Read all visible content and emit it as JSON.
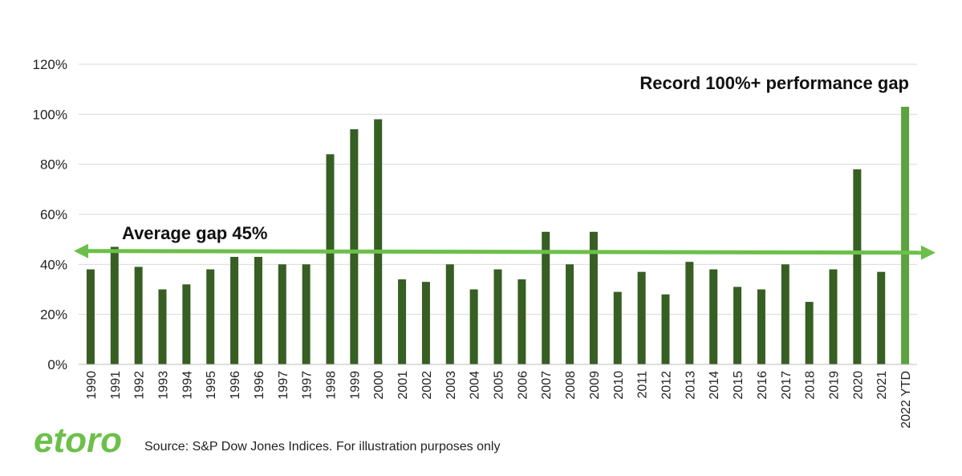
{
  "chart_data": {
    "type": "bar",
    "categories": [
      "1990",
      "1991",
      "1992",
      "1993",
      "1994",
      "1995",
      "1996",
      "1996",
      "1997",
      "1997",
      "1998",
      "1999",
      "2000",
      "2001",
      "2002",
      "2003",
      "2004",
      "2005",
      "2006",
      "2007",
      "2008",
      "2009",
      "2010",
      "2011",
      "2012",
      "2013",
      "2014",
      "2015",
      "2016",
      "2017",
      "2018",
      "2019",
      "2020",
      "2021",
      "2022 YTD"
    ],
    "values": [
      38,
      47,
      39,
      30,
      32,
      38,
      43,
      43,
      40,
      40,
      84,
      94,
      98,
      34,
      33,
      40,
      30,
      38,
      34,
      53,
      40,
      53,
      29,
      37,
      28,
      41,
      38,
      31,
      30,
      40,
      25,
      38,
      78,
      37,
      103
    ],
    "highlight_index": 34,
    "average": 45,
    "ylim": [
      0,
      120
    ],
    "yticks": [
      0,
      20,
      40,
      60,
      80,
      100,
      120
    ],
    "ytick_labels": [
      "0%",
      "20%",
      "40%",
      "60%",
      "80%",
      "100%",
      "120%"
    ],
    "grid": true,
    "annotations": {
      "average_label": "Average gap 45%",
      "record_label": "Record 100%+ performance gap"
    },
    "colors": {
      "bar": "#375e23",
      "bar_highlight": "#5aa33e",
      "average_line": "#6cc04a",
      "grid": "#d9d9d9"
    }
  },
  "footer": {
    "logo_text": "etoro",
    "source": "Source: S&P Dow Jones Indices. For illustration purposes only"
  }
}
